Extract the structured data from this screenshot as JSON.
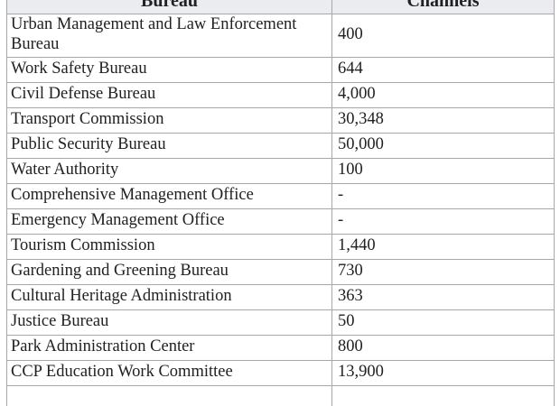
{
  "table": {
    "header": {
      "bureau": "Bureau",
      "channels": "Channels"
    },
    "header_bg": "#eaecf0",
    "border_color": "#a2a9b1",
    "rows": [
      {
        "bureau": "Urban Management and Law Enforcement Bureau",
        "channels": "400"
      },
      {
        "bureau": "Work Safety Bureau",
        "channels": "644"
      },
      {
        "bureau": "Civil Defense Bureau",
        "channels": "4,000"
      },
      {
        "bureau": "Transport Commission",
        "channels": "30,348"
      },
      {
        "bureau": "Public Security Bureau",
        "channels": "50,000"
      },
      {
        "bureau": "Water Authority",
        "channels": "100"
      },
      {
        "bureau": "Comprehensive Management Office",
        "channels": "-"
      },
      {
        "bureau": "Emergency Management Office",
        "channels": "-"
      },
      {
        "bureau": "Tourism Commission",
        "channels": "1,440"
      },
      {
        "bureau": "Gardening and Greening Bureau",
        "channels": "730"
      },
      {
        "bureau": "Cultural Heritage Administration",
        "channels": "363"
      },
      {
        "bureau": "Justice Bureau",
        "channels": "50"
      },
      {
        "bureau": "Park Administration Center",
        "channels": "800"
      },
      {
        "bureau": "CCP Education Work Committee",
        "channels": "13,900"
      }
    ]
  }
}
